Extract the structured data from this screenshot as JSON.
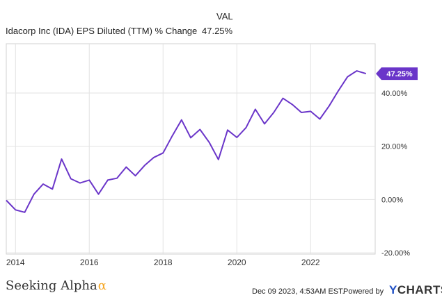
{
  "legend": {
    "header": "VAL",
    "series_name": "Idacorp Inc (IDA) EPS Diluted (TTM) % Change",
    "series_value": "47.25%"
  },
  "chart_data": {
    "type": "line",
    "series": [
      {
        "name": "Idacorp Inc (IDA) EPS Diluted (TTM) % Change",
        "color": "#6a35c9",
        "points": [
          [
            2013.75,
            -0.3
          ],
          [
            2014.0,
            -3.9
          ],
          [
            2014.25,
            -4.8
          ],
          [
            2014.5,
            2.0
          ],
          [
            2014.75,
            5.8
          ],
          [
            2015.0,
            3.9
          ],
          [
            2015.25,
            15.2
          ],
          [
            2015.5,
            7.8
          ],
          [
            2015.75,
            6.2
          ],
          [
            2016.0,
            7.3
          ],
          [
            2016.25,
            2.0
          ],
          [
            2016.5,
            7.3
          ],
          [
            2016.75,
            8.0
          ],
          [
            2017.0,
            12.2
          ],
          [
            2017.25,
            8.9
          ],
          [
            2017.5,
            12.8
          ],
          [
            2017.75,
            15.8
          ],
          [
            2018.0,
            17.5
          ],
          [
            2018.25,
            23.9
          ],
          [
            2018.5,
            29.9
          ],
          [
            2018.75,
            23.2
          ],
          [
            2019.0,
            26.3
          ],
          [
            2019.25,
            21.5
          ],
          [
            2019.5,
            15.0
          ],
          [
            2019.75,
            26.1
          ],
          [
            2020.0,
            23.3
          ],
          [
            2020.25,
            27.0
          ],
          [
            2020.5,
            33.9
          ],
          [
            2020.75,
            28.4
          ],
          [
            2021.0,
            32.7
          ],
          [
            2021.25,
            38.0
          ],
          [
            2021.5,
            35.7
          ],
          [
            2021.75,
            32.7
          ],
          [
            2022.0,
            33.1
          ],
          [
            2022.25,
            30.2
          ],
          [
            2022.5,
            35.1
          ],
          [
            2022.75,
            40.8
          ],
          [
            2023.0,
            46.1
          ],
          [
            2023.25,
            48.3
          ],
          [
            2023.5,
            47.25
          ]
        ]
      }
    ],
    "last_value_label": "47.25%",
    "x_ticks": [
      2014,
      2016,
      2018,
      2020,
      2022
    ],
    "x_tick_labels": [
      "2014",
      "2016",
      "2018",
      "2020",
      "2022"
    ],
    "y_ticks": [
      40,
      20,
      0,
      -20
    ],
    "y_tick_labels": [
      "40.00%",
      "20.00%",
      "0.00%",
      "-20.00%"
    ],
    "xlim": [
      2013.75,
      2023.75
    ],
    "ylim": [
      -20.5,
      58.5
    ],
    "grid": true
  },
  "footer": {
    "logo_text": "Seeking Alpha",
    "logo_symbol": "α",
    "timestamp": "Dec 09 2023, 4:53AM EST.",
    "powered_by": "Powered by",
    "brand_mark": "Y",
    "brand_name": "CHARTS"
  }
}
